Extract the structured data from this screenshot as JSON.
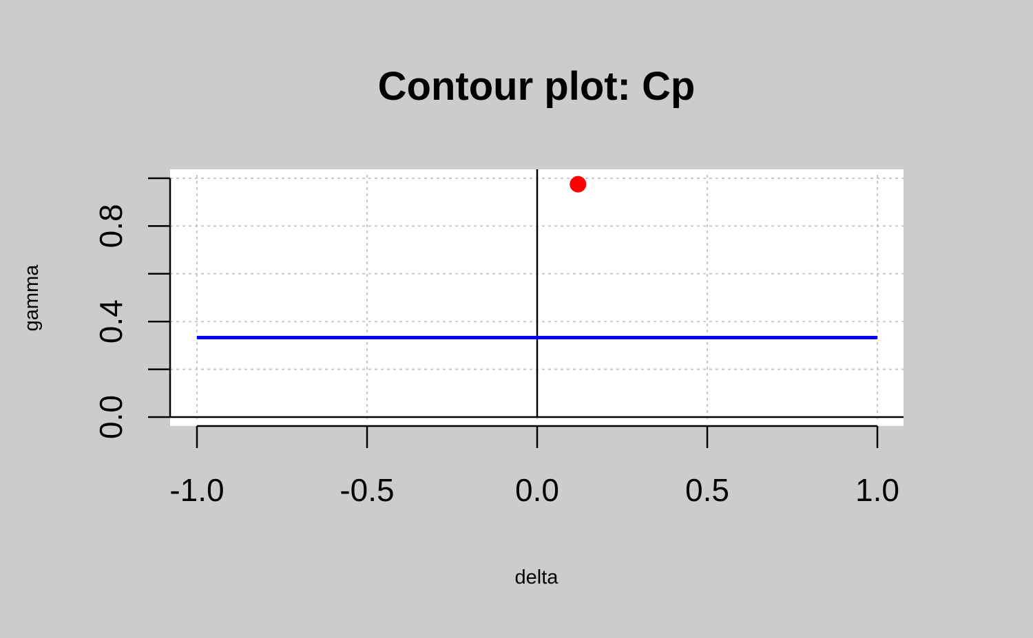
{
  "chart_data": {
    "type": "line",
    "title": "Contour plot: Cp",
    "xlabel": "delta",
    "ylabel": "gamma",
    "xlim": [
      -1.0,
      1.0
    ],
    "ylim": [
      0.0,
      1.0
    ],
    "x_ticks": [
      -1.0,
      -0.5,
      0.0,
      0.5,
      1.0
    ],
    "x_tick_labels": [
      "-1.0",
      "-0.5",
      "0.0",
      "0.5",
      "1.0"
    ],
    "y_ticks": [
      0.0,
      0.2,
      0.4,
      0.6,
      0.8,
      1.0
    ],
    "y_tick_labels": [
      "0.0",
      "",
      "0.4",
      "",
      "0.8",
      ""
    ],
    "grid": true,
    "reference_lines": {
      "vertical_x": 0.0,
      "horizontal_y": 0.0
    },
    "series": [
      {
        "type": "line",
        "color": "#0000ff",
        "x": [
          -1.0,
          1.0
        ],
        "y": [
          0.333,
          0.333
        ]
      },
      {
        "type": "point",
        "color": "#ff0000",
        "x": [
          0.12
        ],
        "y": [
          0.975
        ]
      }
    ]
  }
}
